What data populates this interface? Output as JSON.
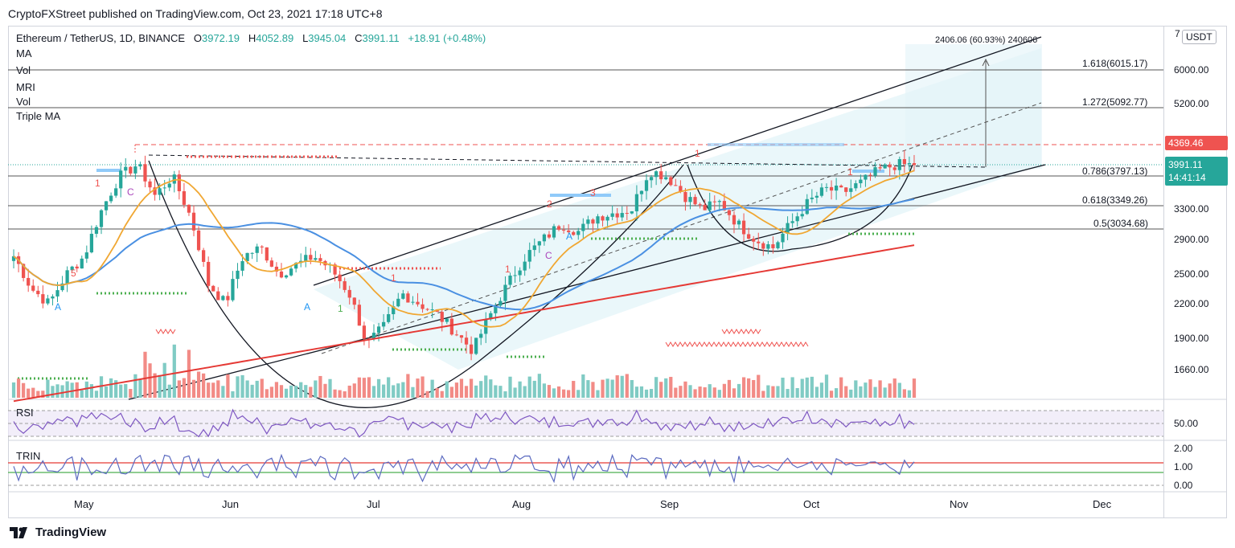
{
  "header": "CryptoFXStreet published on TradingView.com, Oct 23, 2021 17:18 UTC+8",
  "symbol": {
    "name": "Ethereum / TetherUS, 1D, BINANCE",
    "o_label": "O",
    "o": "3972.19",
    "h_label": "H",
    "h": "4052.89",
    "l_label": "L",
    "l": "3945.04",
    "c_label": "C",
    "c": "3991.11",
    "change": "+18.91 (+0.48%)"
  },
  "indicators": [
    "MA",
    "Vol",
    "MRI",
    "Vol",
    "Triple MA"
  ],
  "currency": "USDT",
  "price_axis": [
    "7",
    "6000.00",
    "5200.00",
    "3300.00",
    "2900.00",
    "2500.00",
    "2200.00",
    "1900.00",
    "1660.00"
  ],
  "last_price": {
    "value": "3991.11",
    "countdown": "14:41:14",
    "color": "#26a69a"
  },
  "high_label": {
    "value": "4369.46",
    "color": "#ef5350"
  },
  "fib_levels": [
    {
      "label": "1.618(6015.17)"
    },
    {
      "label": "1.272(5092.77)"
    },
    {
      "label": "0.786(3797.13)"
    },
    {
      "label": "0.618(3349.26)"
    },
    {
      "label": "0.5(3034.68)"
    }
  ],
  "measure_label": "2406.06 (60.93%) 240606",
  "rsi": {
    "label": "RSI",
    "tick": "50.00"
  },
  "trin": {
    "label": "TRIN",
    "ticks": [
      "2.00",
      "1.00",
      "0.00"
    ]
  },
  "date_axis": [
    "May",
    "Jun",
    "Jul",
    "Aug",
    "Sep",
    "Oct",
    "Nov",
    "Dec"
  ],
  "footer": "TradingView",
  "chart_data": {
    "type": "candlestick",
    "title": "Ethereum / TetherUS, 1D, BINANCE",
    "x_range": [
      "2021-04-18",
      "2021-12-20"
    ],
    "y_range": [
      1500,
      7000
    ],
    "y_scale": "log",
    "ma_series": [
      {
        "name": "MA 20",
        "color": "#f0a732"
      },
      {
        "name": "MA 50",
        "color": "#4a90e2"
      },
      {
        "name": "MA 200",
        "color": "#e53935"
      }
    ],
    "close_path": [
      2700,
      2350,
      2200,
      2500,
      2700,
      3300,
      3800,
      4000,
      3500,
      3800,
      3200,
      2400,
      2200,
      2700,
      2800,
      2500,
      2600,
      2700,
      2550,
      2300,
      1850,
      2000,
      2300,
      2200,
      2100,
      1950,
      1800,
      2100,
      2400,
      2700,
      2900,
      3100,
      3000,
      3200,
      3250,
      3300,
      3900,
      3800,
      3500,
      3300,
      3400,
      3100,
      2900,
      2800,
      3100,
      3400,
      3600,
      3550,
      3700,
      3900,
      4000,
      3990
    ],
    "fibonacci": [
      {
        "ratio": 1.618,
        "value": 6015.17
      },
      {
        "ratio": 1.272,
        "value": 5092.77
      },
      {
        "ratio": 0.786,
        "value": 3797.13
      },
      {
        "ratio": 0.618,
        "value": 3349.26
      },
      {
        "ratio": 0.5,
        "value": 3034.68
      }
    ],
    "measure": {
      "change": 2406.06,
      "percent": 60.93
    },
    "last_close": 3991.11,
    "recent_high": 4369.46
  }
}
